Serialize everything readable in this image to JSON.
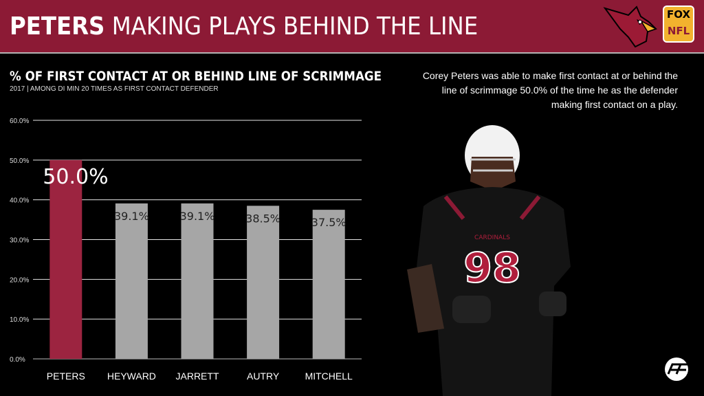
{
  "header": {
    "title_strong": "PETERS",
    "title_rest": "MAKING PLAYS BEHIND THE LINE",
    "fox_label": "FOX",
    "nfl_label": "NFL"
  },
  "description": "Corey Peters was able to make first contact at or behind the line of scrimmage 50.0% of the time he as the defender making first contact on a play.",
  "player": {
    "jersey_number": "98",
    "team_wordmark": "CARDINALS"
  },
  "colors": {
    "banner": "#8c1a35",
    "highlight_bar": "#9c2440",
    "bar": "#a6a6a6"
  },
  "chart_data": {
    "type": "bar",
    "title": "% OF FIRST CONTACT AT OR BEHIND LINE OF SCRIMMAGE",
    "subtitle": "2017 | AMONG DI MIN 20 TIMES AS FIRST CONTACT DEFENDER",
    "categories": [
      "PETERS",
      "HEYWARD",
      "JARRETT",
      "AUTRY",
      "MITCHELL"
    ],
    "values": [
      50.0,
      39.1,
      39.1,
      38.5,
      37.5
    ],
    "data_labels": [
      "50.0%",
      "39.1%",
      "39.1%",
      "38.5%",
      "37.5%"
    ],
    "highlight_index": 0,
    "ylim": [
      0,
      60
    ],
    "yticks": [
      0,
      10,
      20,
      30,
      40,
      50,
      60
    ],
    "ytick_labels": [
      "0.0%",
      "10.0%",
      "20.0%",
      "30.0%",
      "40.0%",
      "50.0%",
      "60.0%"
    ],
    "grid": true,
    "legend": "none"
  }
}
